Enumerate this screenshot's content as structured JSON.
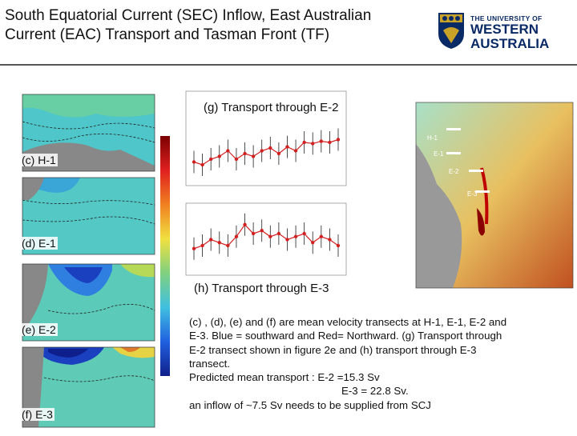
{
  "title": {
    "line1": "South Equatorial Current (SEC) Inflow, East Australian",
    "line2": "Current (EAC) Transport and Tasman Front (TF)"
  },
  "logo": {
    "line1": "THE UNIVERSITY OF",
    "line2": "WESTERN",
    "line3": "AUSTRALIA"
  },
  "panels": {
    "c": "(c)  H-1",
    "d": "(d)  E-1",
    "e": "(e)  E-2",
    "f": "(f)  E-3"
  },
  "transport": {
    "g_title": "(g) Transport through E-2",
    "h_title": "(h) Transport through E-3"
  },
  "map_labels": [
    "H-1",
    "E-1",
    "E-2",
    "E-3"
  ],
  "caption": {
    "l1": "(c) , (d), (e) and (f) are mean velocity transects at H-1, E-1, E-2 and",
    "l2": "E-3. Blue = southward and Red= Northward.  (g) Transport through",
    "l3": "E-2  transect shown in figure 2e and (h) transport through E-3",
    "l4": "transect.",
    "l5": "Predicted mean transport : E-2 =15.3 Sv",
    "l6": "E-3 = 22.8  Sv.",
    "l7": "an inflow of ~7.5 Sv needs to be supplied from SCJ"
  },
  "colors": {
    "rule": "#555555",
    "series": "#d22020",
    "logo": "#0a2a66"
  }
}
